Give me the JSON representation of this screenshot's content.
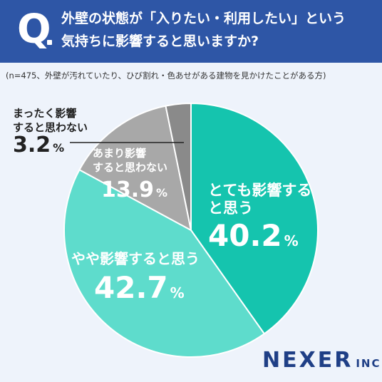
{
  "question": {
    "mark": "Q",
    "line1": "外壁の状態が「入りたい・利用したい」という",
    "line2": "気持ちに影響すると思いますか?"
  },
  "note": "(n=475、外壁が汚れていたり、ひび割れ・色あせがある建物を見かけたことがある方)",
  "logo": {
    "main": "NEXER",
    "sub": "INC."
  },
  "colors": {
    "header": "#2e56a6",
    "background": "#eef3fb",
    "slice_strong": "#15c4ae",
    "slice_some": "#5edccc",
    "slice_little": "#a8a8a8",
    "slice_none": "#8a8a8a"
  },
  "chart_data": {
    "type": "pie",
    "title": "",
    "slices": [
      {
        "label_lines": [
          "とても影響する",
          "と思う"
        ],
        "value": 40.2,
        "value_text": "40.2",
        "unit": "%",
        "color": "#15c4ae"
      },
      {
        "label_lines": [
          "やや影響すると思う"
        ],
        "value": 42.7,
        "value_text": "42.7",
        "unit": "%",
        "color": "#5edccc"
      },
      {
        "label_lines": [
          "あまり影響",
          "すると思わない"
        ],
        "value": 13.9,
        "value_text": "13.9",
        "unit": "%",
        "color": "#a8a8a8"
      },
      {
        "label_lines": [
          "まったく影響",
          "すると思わない"
        ],
        "value": 3.2,
        "value_text": "3.2",
        "unit": "%",
        "color": "#8a8a8a"
      }
    ],
    "start": "12 o'clock",
    "direction": "clockwise"
  }
}
